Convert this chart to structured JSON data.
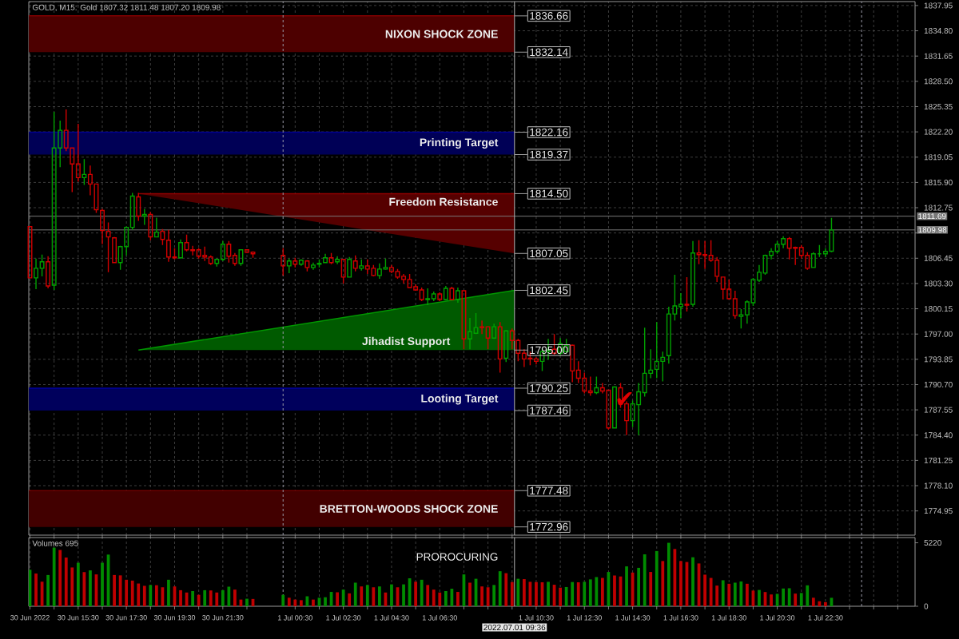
{
  "chart_data": [
    {
      "type": "candlestick",
      "title": "GOLD, M15: Gold 1807.32 1811.48 1807.20 1809.98",
      "x": [
        "2022-06-30T13:30",
        "2022-06-30T13:45",
        "2022-06-30T14:00",
        "2022-06-30T14:15",
        "2022-06-30T14:30",
        "2022-06-30T14:45",
        "2022-06-30T15:00",
        "2022-06-30T15:15",
        "2022-06-30T15:30",
        "2022-06-30T15:45",
        "2022-06-30T16:00",
        "2022-06-30T16:15",
        "2022-06-30T16:30",
        "2022-06-30T16:45",
        "2022-06-30T17:00",
        "2022-06-30T17:15",
        "2022-06-30T17:30",
        "2022-06-30T17:45",
        "2022-06-30T18:00",
        "2022-06-30T18:15",
        "2022-06-30T18:30",
        "2022-06-30T18:45",
        "2022-06-30T19:00",
        "2022-06-30T19:15",
        "2022-06-30T19:30",
        "2022-06-30T19:45",
        "2022-06-30T20:00",
        "2022-06-30T20:15",
        "2022-06-30T20:30",
        "2022-06-30T20:45",
        "2022-06-30T21:00",
        "2022-06-30T21:15",
        "2022-06-30T21:30",
        "2022-06-30T21:45",
        "2022-06-30T22:00",
        "2022-06-30T22:15",
        "2022-06-30T22:30",
        "2022-06-30T22:45",
        "2022-07-01T00:00",
        "2022-07-01T00:15",
        "2022-07-01T00:30",
        "2022-07-01T00:45",
        "2022-07-01T01:00",
        "2022-07-01T01:15",
        "2022-07-01T01:30",
        "2022-07-01T01:45",
        "2022-07-01T02:00",
        "2022-07-01T02:15",
        "2022-07-01T02:30",
        "2022-07-01T02:45",
        "2022-07-01T03:00",
        "2022-07-01T03:15",
        "2022-07-01T03:30",
        "2022-07-01T03:45",
        "2022-07-01T04:00",
        "2022-07-01T04:15",
        "2022-07-01T04:30",
        "2022-07-01T04:45",
        "2022-07-01T05:00",
        "2022-07-01T05:15",
        "2022-07-01T05:30",
        "2022-07-01T05:45",
        "2022-07-01T06:00",
        "2022-07-01T06:15",
        "2022-07-01T06:30",
        "2022-07-01T06:45",
        "2022-07-01T07:00",
        "2022-07-01T07:15",
        "2022-07-01T07:30",
        "2022-07-01T07:45",
        "2022-07-01T08:00",
        "2022-07-01T08:15",
        "2022-07-01T08:30",
        "2022-07-01T08:45",
        "2022-07-01T09:00",
        "2022-07-01T09:15",
        "2022-07-01T09:30",
        "2022-07-01T09:45",
        "2022-07-01T10:00",
        "2022-07-01T10:15",
        "2022-07-01T10:30",
        "2022-07-01T10:45",
        "2022-07-01T11:00",
        "2022-07-01T11:15",
        "2022-07-01T11:30",
        "2022-07-01T11:45",
        "2022-07-01T12:00",
        "2022-07-01T12:15",
        "2022-07-01T12:30",
        "2022-07-01T12:45",
        "2022-07-01T13:00",
        "2022-07-01T13:15",
        "2022-07-01T13:30",
        "2022-07-01T13:45",
        "2022-07-01T14:00",
        "2022-07-01T14:15",
        "2022-07-01T14:30",
        "2022-07-01T14:45",
        "2022-07-01T15:00",
        "2022-07-01T15:15",
        "2022-07-01T15:30",
        "2022-07-01T15:45",
        "2022-07-01T16:00",
        "2022-07-01T16:15",
        "2022-07-01T16:30",
        "2022-07-01T16:45",
        "2022-07-01T17:00",
        "2022-07-01T17:15",
        "2022-07-01T17:30",
        "2022-07-01T17:45",
        "2022-07-01T18:00",
        "2022-07-01T18:15",
        "2022-07-01T18:30",
        "2022-07-01T18:45",
        "2022-07-01T19:00",
        "2022-07-01T19:15",
        "2022-07-01T19:30",
        "2022-07-01T19:45",
        "2022-07-01T20:00",
        "2022-07-01T20:15",
        "2022-07-01T20:30",
        "2022-07-01T20:45",
        "2022-07-01T21:00",
        "2022-07-01T21:15",
        "2022-07-01T21:30",
        "2022-07-01T21:45",
        "2022-07-01T22:00",
        "2022-07-01T22:15",
        "2022-07-01T22:30",
        "2022-07-01T22:45"
      ],
      "ohlc": [
        [
          1810.4,
          1810.4,
          1804.0,
          1804.0
        ],
        [
          1804.0,
          1806.4,
          1802.6,
          1805.2
        ],
        [
          1805.2,
          1806.9,
          1804.2,
          1806.0
        ],
        [
          1806.0,
          1806.7,
          1802.7,
          1803.0
        ],
        [
          1803.1,
          1824.7,
          1802.5,
          1820.2
        ],
        [
          1820.2,
          1823.6,
          1817.8,
          1822.4
        ],
        [
          1822.4,
          1825.0,
          1819.8,
          1820.2
        ],
        [
          1820.2,
          1820.2,
          1814.7,
          1818.2
        ],
        [
          1818.2,
          1823.2,
          1816.0,
          1816.5
        ],
        [
          1816.5,
          1818.8,
          1815.6,
          1816.9
        ],
        [
          1816.9,
          1818.0,
          1814.3,
          1815.7
        ],
        [
          1815.7,
          1815.7,
          1812.1,
          1812.5
        ],
        [
          1812.4,
          1812.6,
          1808.2,
          1809.9
        ],
        [
          1809.8,
          1810.9,
          1804.7,
          1809.1
        ],
        [
          1809.0,
          1809.1,
          1805.9,
          1805.9
        ],
        [
          1805.9,
          1808.0,
          1805.0,
          1807.9
        ],
        [
          1807.9,
          1810.4,
          1806.8,
          1810.3
        ],
        [
          1810.3,
          1814.6,
          1810.0,
          1814.2
        ],
        [
          1814.1,
          1814.6,
          1811.1,
          1811.7
        ],
        [
          1811.7,
          1812.6,
          1810.6,
          1811.9
        ],
        [
          1811.9,
          1812.2,
          1808.7,
          1809.1
        ],
        [
          1809.1,
          1811.5,
          1809.1,
          1809.7
        ],
        [
          1809.8,
          1810.1,
          1808.1,
          1808.8
        ],
        [
          1808.7,
          1810.0,
          1806.0,
          1806.6
        ],
        [
          1806.6,
          1807.7,
          1806.3,
          1806.5
        ],
        [
          1806.5,
          1808.8,
          1806.4,
          1808.4
        ],
        [
          1808.4,
          1809.4,
          1807.3,
          1807.5
        ],
        [
          1807.5,
          1808.0,
          1806.8,
          1807.4
        ],
        [
          1807.5,
          1807.7,
          1806.4,
          1806.7
        ],
        [
          1806.8,
          1807.9,
          1806.1,
          1806.6
        ],
        [
          1806.6,
          1806.8,
          1805.6,
          1805.8
        ],
        [
          1805.8,
          1806.4,
          1805.4,
          1806.3
        ],
        [
          1806.3,
          1808.6,
          1806.1,
          1808.2
        ],
        [
          1808.2,
          1808.6,
          1805.9,
          1806.7
        ],
        [
          1806.8,
          1807.1,
          1805.5,
          1805.8
        ],
        [
          1805.8,
          1807.5,
          1805.5,
          1807.5
        ],
        [
          1807.5,
          1807.5,
          1807.1,
          1807.2
        ],
        [
          1807.2,
          1807.3,
          1806.5,
          1807.0
        ],
        [
          1806.8,
          1807.7,
          1804.3,
          1805.5
        ],
        [
          1805.5,
          1806.4,
          1804.6,
          1806.1
        ],
        [
          1806.1,
          1806.5,
          1805.3,
          1805.7
        ],
        [
          1805.7,
          1806.3,
          1805.5,
          1806.2
        ],
        [
          1806.1,
          1806.2,
          1804.8,
          1805.3
        ],
        [
          1805.3,
          1805.9,
          1805.0,
          1805.6
        ],
        [
          1805.7,
          1806.3,
          1805.3,
          1805.8
        ],
        [
          1805.9,
          1807.0,
          1805.9,
          1806.5
        ],
        [
          1806.5,
          1807.1,
          1805.7,
          1805.9
        ],
        [
          1806.0,
          1806.7,
          1805.7,
          1806.3
        ],
        [
          1806.3,
          1806.3,
          1803.3,
          1804.1
        ],
        [
          1804.1,
          1806.6,
          1804.1,
          1806.3
        ],
        [
          1806.1,
          1806.8,
          1804.8,
          1805.2
        ],
        [
          1805.2,
          1806.3,
          1804.9,
          1805.5
        ],
        [
          1805.5,
          1806.3,
          1804.5,
          1805.1
        ],
        [
          1805.2,
          1805.6,
          1804.2,
          1804.3
        ],
        [
          1804.3,
          1805.8,
          1803.9,
          1805.1
        ],
        [
          1805.1,
          1806.4,
          1805.0,
          1805.3
        ],
        [
          1805.3,
          1805.6,
          1804.6,
          1804.8
        ],
        [
          1804.8,
          1805.1,
          1803.9,
          1804.1
        ],
        [
          1804.2,
          1804.5,
          1803.3,
          1803.8
        ],
        [
          1803.8,
          1804.5,
          1802.8,
          1802.8
        ],
        [
          1802.9,
          1803.2,
          1802.4,
          1802.5
        ],
        [
          1802.5,
          1802.8,
          1801.1,
          1801.3
        ],
        [
          1801.3,
          1802.7,
          1800.6,
          1801.4
        ],
        [
          1801.4,
          1802.3,
          1801.1,
          1802.0
        ],
        [
          1802.0,
          1802.2,
          1801.1,
          1801.3
        ],
        [
          1801.3,
          1803.0,
          1801.2,
          1802.7
        ],
        [
          1802.7,
          1802.9,
          1801.2,
          1801.3
        ],
        [
          1801.3,
          1802.8,
          1800.9,
          1802.4
        ],
        [
          1802.4,
          1802.4,
          1795.1,
          1796.4
        ],
        [
          1796.4,
          1799.0,
          1795.1,
          1797.3
        ],
        [
          1797.1,
          1799.6,
          1797.0,
          1797.8
        ],
        [
          1797.9,
          1798.7,
          1797.0,
          1797.8
        ],
        [
          1797.9,
          1798.0,
          1795.1,
          1796.5
        ],
        [
          1796.5,
          1798.3,
          1796.4,
          1797.9
        ],
        [
          1797.9,
          1798.5,
          1792.2,
          1793.9
        ],
        [
          1794.0,
          1797.5,
          1793.5,
          1797.4
        ],
        [
          1797.4,
          1797.7,
          1795.1,
          1796.2
        ],
        [
          1796.2,
          1796.4,
          1793.6,
          1794.6
        ],
        [
          1794.6,
          1795.1,
          1792.9,
          1793.9
        ],
        [
          1794.0,
          1794.8,
          1793.1,
          1793.9
        ],
        [
          1793.9,
          1794.1,
          1793.2,
          1793.6
        ],
        [
          1793.6,
          1795.2,
          1792.4,
          1794.8
        ],
        [
          1794.8,
          1796.4,
          1793.8,
          1795.0
        ],
        [
          1795.1,
          1797.0,
          1794.4,
          1794.6
        ],
        [
          1794.6,
          1796.5,
          1794.3,
          1795.8
        ],
        [
          1794.8,
          1796.4,
          1794.6,
          1795.6
        ],
        [
          1795.6,
          1795.7,
          1791.0,
          1792.4
        ],
        [
          1792.5,
          1793.6,
          1790.9,
          1791.5
        ],
        [
          1791.5,
          1792.2,
          1789.6,
          1789.9
        ],
        [
          1789.9,
          1791.7,
          1789.3,
          1789.7
        ],
        [
          1789.7,
          1791.7,
          1789.5,
          1790.3
        ],
        [
          1790.3,
          1790.9,
          1789.6,
          1789.9
        ],
        [
          1790.0,
          1790.0,
          1785.1,
          1785.3
        ],
        [
          1785.3,
          1790.5,
          1785.3,
          1790.4
        ],
        [
          1790.3,
          1790.9,
          1787.8,
          1788.3
        ],
        [
          1788.3,
          1788.6,
          1784.4,
          1786.2
        ],
        [
          1786.2,
          1788.7,
          1785.4,
          1788.3
        ],
        [
          1788.2,
          1790.9,
          1784.4,
          1789.8
        ],
        [
          1789.7,
          1797.8,
          1789.2,
          1792.1
        ],
        [
          1792.1,
          1795.1,
          1791.5,
          1792.5
        ],
        [
          1792.6,
          1798.5,
          1791.5,
          1793.6
        ],
        [
          1793.6,
          1794.8,
          1791.1,
          1794.1
        ],
        [
          1794.3,
          1800.4,
          1793.3,
          1799.5
        ],
        [
          1799.5,
          1804.4,
          1798.7,
          1800.5
        ],
        [
          1800.4,
          1802.1,
          1799.0,
          1800.7
        ],
        [
          1800.7,
          1804.1,
          1799.8,
          1800.6
        ],
        [
          1800.7,
          1808.6,
          1800.4,
          1807.1
        ],
        [
          1807.1,
          1808.7,
          1805.7,
          1806.9
        ],
        [
          1806.9,
          1808.6,
          1805.1,
          1806.8
        ],
        [
          1806.8,
          1808.7,
          1806.0,
          1806.2
        ],
        [
          1806.2,
          1806.6,
          1803.5,
          1804.2
        ],
        [
          1804.1,
          1804.1,
          1801.3,
          1802.6
        ],
        [
          1802.6,
          1803.8,
          1801.3,
          1801.4
        ],
        [
          1801.4,
          1802.4,
          1798.9,
          1799.3
        ],
        [
          1799.2,
          1800.1,
          1797.7,
          1799.4
        ],
        [
          1799.4,
          1801.2,
          1798.3,
          1801.0
        ],
        [
          1800.9,
          1804.0,
          1800.5,
          1803.8
        ],
        [
          1803.7,
          1805.6,
          1803.5,
          1804.7
        ],
        [
          1804.6,
          1806.9,
          1804.4,
          1806.8
        ],
        [
          1806.8,
          1807.7,
          1806.3,
          1807.3
        ],
        [
          1807.3,
          1808.6,
          1807.0,
          1808.2
        ],
        [
          1808.2,
          1809.2,
          1807.7,
          1808.9
        ],
        [
          1808.9,
          1809.1,
          1806.3,
          1807.7
        ],
        [
          1807.8,
          1807.9,
          1805.6,
          1807.7
        ],
        [
          1807.8,
          1808.1,
          1806.4,
          1806.8
        ],
        [
          1806.8,
          1807.2,
          1805.0,
          1805.2
        ],
        [
          1805.3,
          1807.2,
          1805.3,
          1807.0
        ],
        [
          1807.0,
          1808.1,
          1806.6,
          1807.0
        ],
        [
          1807.0,
          1807.7,
          1806.6,
          1807.3
        ],
        [
          1807.32,
          1811.48,
          1807.2,
          1809.98
        ]
      ],
      "colors": [
        "#d00000",
        "#00a000",
        "#00a000",
        "#d00000",
        "#00a000",
        "#00a000",
        "#d00000",
        "#d00000",
        "#d00000",
        "#00a000",
        "#d00000",
        "#d00000",
        "#d00000",
        "#d00000",
        "#d00000",
        "#00a000",
        "#00a000",
        "#00a000",
        "#d00000",
        "#00a000",
        "#d00000",
        "#00a000",
        "#d00000",
        "#d00000",
        "#d00000",
        "#00a000",
        "#d00000",
        "#d00000",
        "#d00000",
        "#d00000",
        "#d00000",
        "#00a000",
        "#00a000",
        "#d00000",
        "#d00000",
        "#00a000",
        "#d00000",
        "#d00000",
        "#d00000",
        "#00a000",
        "#d00000",
        "#00a000",
        "#d00000",
        "#00a000",
        "#00a000",
        "#00a000",
        "#d00000",
        "#00a000",
        "#d00000",
        "#00a000",
        "#d00000",
        "#00a000",
        "#d00000",
        "#d00000",
        "#00a000",
        "#00a000",
        "#d00000",
        "#d00000",
        "#d00000",
        "#d00000",
        "#d00000",
        "#d00000",
        "#00a000",
        "#00a000",
        "#d00000",
        "#00a000",
        "#d00000",
        "#00a000",
        "#d00000",
        "#00a000",
        "#00a000",
        "#d00000",
        "#d00000",
        "#00a000",
        "#d00000",
        "#00a000",
        "#d00000",
        "#d00000",
        "#d00000",
        "#d00000",
        "#d00000",
        "#00a000",
        "#00a000",
        "#d00000",
        "#00a000",
        "#00a000",
        "#d00000",
        "#d00000",
        "#d00000",
        "#d00000",
        "#00a000",
        "#d00000",
        "#d00000",
        "#00a000",
        "#d00000",
        "#d00000",
        "#00a000",
        "#00a000",
        "#00a000",
        "#00a000",
        "#00a000",
        "#00a000",
        "#00a000",
        "#00a000",
        "#00a000",
        "#d00000",
        "#00a000",
        "#d00000",
        "#d00000",
        "#d00000",
        "#d00000",
        "#d00000",
        "#d00000",
        "#d00000",
        "#00a000",
        "#00a000",
        "#00a000",
        "#00a000",
        "#00a000",
        "#00a000",
        "#00a000",
        "#00a000",
        "#d00000",
        "#d00000",
        "#d00000",
        "#d00000",
        "#00a000",
        "#00a000",
        "#00a000",
        "#00a000"
      ],
      "series": [
        {
          "type": "line",
          "name": "NIXON SHOCK ZONE",
          "color": "#800000",
          "x": [
            "2022-06-30T13:27",
            "2022-07-01T09:36"
          ],
          "values": [
            1836.66,
            1836.66
          ],
          "lower": [
            1832.14,
            1832.14
          ],
          "upper": [
            1836.66,
            1836.66
          ]
        },
        {
          "type": "line",
          "name": "Printing Target",
          "color": "#000090",
          "x": [
            "2022-06-30T13:27",
            "2022-07-01T09:36"
          ],
          "values": [
            1822.16,
            1822.16
          ],
          "lower": [
            1819.37,
            1819.37
          ],
          "upper": [
            1822.16,
            1822.16
          ]
        },
        {
          "type": "line",
          "name": "Freedom Resistance",
          "color": "#900000",
          "x": [
            "2022-06-30T18:00",
            "2022-07-01T09:36"
          ],
          "values": [
            1814.5,
            1814.5
          ],
          "lower": [
            1814.5,
            1807.05
          ],
          "upper": [
            1814.5,
            1814.5
          ]
        },
        {
          "type": "line",
          "name": "Jihadist Support",
          "color": "#009600",
          "x": [
            "2022-06-30T18:00",
            "2022-07-01T09:36"
          ],
          "values": [
            1795.0,
            1802.45
          ],
          "lower": [
            1795.0,
            1795.0
          ],
          "upper": [
            1795.0,
            1802.45
          ]
        },
        {
          "type": "line",
          "name": "Looting Target",
          "color": "#00009a",
          "x": [
            "2022-06-30T13:27",
            "2022-07-01T09:36"
          ],
          "values": [
            1790.25,
            1790.25
          ],
          "lower": [
            1787.46,
            1787.46
          ],
          "upper": [
            1790.25,
            1790.25
          ]
        },
        {
          "type": "line",
          "name": "BRETTON-WOODS SHOCK ZONE",
          "color": "#6e0000",
          "x": [
            "2022-06-30T13:27",
            "2022-07-01T09:36"
          ],
          "values": [
            1777.48,
            1777.48
          ],
          "lower": [
            1772.96,
            1772.96
          ],
          "upper": [
            1777.48,
            1777.48
          ]
        }
      ],
      "xlim": [
        "2022-06-30T13:27",
        "2022-07-02T02:13"
      ],
      "xticks": [
        {
          "value": "2022-06-30T13:30",
          "label": null
        },
        {
          "value": "2022-06-30T14:30",
          "label": null
        },
        {
          "value": "2022-06-30T15:30",
          "label": null
        },
        {
          "value": "2022-06-30T16:30",
          "label": null
        },
        {
          "value": "2022-06-30T17:30",
          "label": null
        },
        {
          "value": "2022-06-30T18:30",
          "label": null
        },
        {
          "value": "2022-06-30T19:30",
          "label": null
        },
        {
          "value": "2022-06-30T20:30",
          "label": null
        },
        {
          "value": "2022-06-30T21:30",
          "label": null
        },
        {
          "value": "2022-06-30T22:30",
          "label": null
        },
        {
          "value": "2022-07-01T00:30",
          "label": null
        },
        {
          "value": "2022-07-01T01:30",
          "label": null
        },
        {
          "value": "2022-07-01T02:30",
          "label": null
        },
        {
          "value": "2022-07-01T03:30",
          "label": null
        },
        {
          "value": "2022-07-01T04:30",
          "label": null
        },
        {
          "value": "2022-07-01T05:30",
          "label": null
        },
        {
          "value": "2022-07-01T06:30",
          "label": null
        },
        {
          "value": "2022-07-01T07:30",
          "label": null
        },
        {
          "value": "2022-07-01T08:30",
          "label": null
        },
        {
          "value": "2022-07-01T09:30",
          "label": null
        },
        {
          "value": "2022-07-01T10:30",
          "label": null
        },
        {
          "value": "2022-07-01T11:30",
          "label": null
        },
        {
          "value": "2022-07-01T12:30",
          "label": null
        },
        {
          "value": "2022-07-01T13:30",
          "label": null
        },
        {
          "value": "2022-07-01T14:30",
          "label": null
        },
        {
          "value": "2022-07-01T15:30",
          "label": null
        },
        {
          "value": "2022-07-01T16:30",
          "label": null
        },
        {
          "value": "2022-07-01T17:30",
          "label": null
        },
        {
          "value": "2022-07-01T18:30",
          "label": null
        },
        {
          "value": "2022-07-01T19:30",
          "label": null
        },
        {
          "value": "2022-07-01T20:30",
          "label": null
        },
        {
          "value": "2022-07-01T21:30",
          "label": null
        },
        {
          "value": "2022-07-01T22:30",
          "label": null
        },
        {
          "value": "2022-07-01T23:30",
          "label": null
        },
        {
          "value": "2022-07-02T00:30",
          "label": null
        },
        {
          "value": "2022-07-02T01:30",
          "label": null
        }
      ],
      "ylim": [
        1771.93,
        1838.44
      ],
      "yticks": [
        {
          "value": 1774.95,
          "label": "1774.95"
        },
        {
          "value": 1778.1,
          "label": "1778.10"
        },
        {
          "value": 1781.25,
          "label": "1781.25"
        },
        {
          "value": 1784.4,
          "label": "1784.40"
        },
        {
          "value": 1787.55,
          "label": "1787.55"
        },
        {
          "value": 1790.7,
          "label": "1790.70"
        },
        {
          "value": 1793.85,
          "label": "1793.85"
        },
        {
          "value": 1797,
          "label": "1797.00"
        },
        {
          "value": 1800.15,
          "label": "1800.15"
        },
        {
          "value": 1803.3,
          "label": "1803.30"
        },
        {
          "value": 1806.45,
          "label": "1806.45"
        },
        {
          "value": 1809.6,
          "label": null
        },
        {
          "value": 1812.75,
          "label": "1812.75"
        },
        {
          "value": 1815.9,
          "label": "1815.90"
        },
        {
          "value": 1819.05,
          "label": "1819.05"
        },
        {
          "value": 1822.2,
          "label": "1822.20"
        },
        {
          "value": 1825.35,
          "label": "1825.35"
        },
        {
          "value": 1828.5,
          "label": "1828.50"
        },
        {
          "value": 1831.65,
          "label": "1831.65"
        },
        {
          "value": 1834.8,
          "label": "1834.80"
        },
        {
          "value": 1837.95,
          "label": "1837.95"
        }
      ],
      "tick_labels": "y",
      "grid": true,
      "ref_lines": [
        {
          "axis": "y",
          "value": 1811.69,
          "label": "1811.69",
          "color": "#787878"
        },
        {
          "axis": "y",
          "value": 1809.98,
          "label": "1809.98",
          "color": "#787878"
        },
        {
          "axis": "x",
          "value": "2022-07-01T09:36",
          "color": "#b4b4b4"
        },
        {
          "axis": "x",
          "value": "2022-07-01T00:00",
          "color": "#9a9aa8",
          "line_style": "dashed"
        },
        {
          "axis": "x",
          "value": "2022-07-02T00:00",
          "color": "#9a9aa8",
          "line_style": "dashed"
        }
      ],
      "annotations": [
        "1836.66",
        "1832.14",
        "1822.16",
        "1819.37",
        "1814.50",
        "1807.05",
        "1802.45",
        "1795.00",
        "1790.25",
        "1787.46",
        "1777.48",
        "1772.96",
        {
          "text": "✔",
          "x": "2022-07-01T14:10",
          "y": 1788.8
        }
      ]
    },
    {
      "type": "bar",
      "title": "Volumes 695",
      "x": [
        "2022-06-30T13:30",
        "2022-06-30T13:45",
        "2022-06-30T14:00",
        "2022-06-30T14:15",
        "2022-06-30T14:30",
        "2022-06-30T14:45",
        "2022-06-30T15:00",
        "2022-06-30T15:15",
        "2022-06-30T15:30",
        "2022-06-30T15:45",
        "2022-06-30T16:00",
        "2022-06-30T16:15",
        "2022-06-30T16:30",
        "2022-06-30T16:45",
        "2022-06-30T17:00",
        "2022-06-30T17:15",
        "2022-06-30T17:30",
        "2022-06-30T17:45",
        "2022-06-30T18:00",
        "2022-06-30T18:15",
        "2022-06-30T18:30",
        "2022-06-30T18:45",
        "2022-06-30T19:00",
        "2022-06-30T19:15",
        "2022-06-30T19:30",
        "2022-06-30T19:45",
        "2022-06-30T20:00",
        "2022-06-30T20:15",
        "2022-06-30T20:30",
        "2022-06-30T20:45",
        "2022-06-30T21:00",
        "2022-06-30T21:15",
        "2022-06-30T21:30",
        "2022-06-30T21:45",
        "2022-06-30T22:00",
        "2022-06-30T22:15",
        "2022-06-30T22:30",
        "2022-06-30T22:45",
        "2022-07-01T00:00",
        "2022-07-01T00:15",
        "2022-07-01T00:30",
        "2022-07-01T00:45",
        "2022-07-01T01:00",
        "2022-07-01T01:15",
        "2022-07-01T01:30",
        "2022-07-01T01:45",
        "2022-07-01T02:00",
        "2022-07-01T02:15",
        "2022-07-01T02:30",
        "2022-07-01T02:45",
        "2022-07-01T03:00",
        "2022-07-01T03:15",
        "2022-07-01T03:30",
        "2022-07-01T03:45",
        "2022-07-01T04:00",
        "2022-07-01T04:15",
        "2022-07-01T04:30",
        "2022-07-01T04:45",
        "2022-07-01T05:00",
        "2022-07-01T05:15",
        "2022-07-01T05:30",
        "2022-07-01T05:45",
        "2022-07-01T06:00",
        "2022-07-01T06:15",
        "2022-07-01T06:30",
        "2022-07-01T06:45",
        "2022-07-01T07:00",
        "2022-07-01T07:15",
        "2022-07-01T07:30",
        "2022-07-01T07:45",
        "2022-07-01T08:00",
        "2022-07-01T08:15",
        "2022-07-01T08:30",
        "2022-07-01T08:45",
        "2022-07-01T09:00",
        "2022-07-01T09:15",
        "2022-07-01T09:30",
        "2022-07-01T09:45",
        "2022-07-01T10:00",
        "2022-07-01T10:15",
        "2022-07-01T10:30",
        "2022-07-01T10:45",
        "2022-07-01T11:00",
        "2022-07-01T11:15",
        "2022-07-01T11:30",
        "2022-07-01T11:45",
        "2022-07-01T12:00",
        "2022-07-01T12:15",
        "2022-07-01T12:30",
        "2022-07-01T12:45",
        "2022-07-01T13:00",
        "2022-07-01T13:15",
        "2022-07-01T13:30",
        "2022-07-01T13:45",
        "2022-07-01T14:00",
        "2022-07-01T14:15",
        "2022-07-01T14:30",
        "2022-07-01T14:45",
        "2022-07-01T15:00",
        "2022-07-01T15:15",
        "2022-07-01T15:30",
        "2022-07-01T15:45",
        "2022-07-01T16:00",
        "2022-07-01T16:15",
        "2022-07-01T16:30",
        "2022-07-01T16:45",
        "2022-07-01T17:00",
        "2022-07-01T17:15",
        "2022-07-01T17:30",
        "2022-07-01T17:45",
        "2022-07-01T18:00",
        "2022-07-01T18:15",
        "2022-07-01T18:30",
        "2022-07-01T18:45",
        "2022-07-01T19:00",
        "2022-07-01T19:15",
        "2022-07-01T19:30",
        "2022-07-01T19:45",
        "2022-07-01T20:00",
        "2022-07-01T20:15",
        "2022-07-01T20:30",
        "2022-07-01T20:45",
        "2022-07-01T21:00",
        "2022-07-01T21:15",
        "2022-07-01T21:30",
        "2022-07-01T21:45",
        "2022-07-01T22:00",
        "2022-07-01T22:15",
        "2022-07-01T22:30",
        "2022-07-01T22:45"
      ],
      "values": [
        3000,
        2690,
        2020,
        2570,
        4820,
        4630,
        4010,
        3190,
        3580,
        2810,
        2950,
        2620,
        3580,
        4250,
        2570,
        2540,
        2180,
        2110,
        1870,
        1680,
        1750,
        1730,
        1560,
        2180,
        1630,
        1320,
        1130,
        1250,
        940,
        1320,
        1300,
        1130,
        1320,
        1610,
        1370,
        550,
        620,
        600,
        940,
        700,
        550,
        500,
        820,
        550,
        700,
        740,
        1180,
        1150,
        1370,
        1060,
        1940,
        1630,
        1750,
        1560,
        1630,
        1130,
        1800,
        1560,
        1800,
        2300,
        2020,
        2180,
        1750,
        1370,
        1130,
        1250,
        1440,
        1180,
        2620,
        1940,
        2260,
        1630,
        1560,
        1750,
        2880,
        2720,
        1990,
        2260,
        2230,
        2010,
        1990,
        1970,
        2010,
        1770,
        1530,
        1580,
        1990,
        1970,
        2010,
        2210,
        2400,
        2330,
        2820,
        2530,
        2450,
        3280,
        2770,
        3160,
        4270,
        2820,
        4540,
        3720,
        5220,
        4710,
        3720,
        3640,
        4030,
        3520,
        2600,
        2330,
        1700,
        2140,
        1850,
        1940,
        2040,
        1850,
        1290,
        1340,
        1170,
        970,
        1020,
        1460,
        1480,
        1040,
        1090,
        1720,
        700,
        410,
        340,
        695
      ],
      "colors": [
        "#008c00",
        "#c00000",
        "#c00000",
        "#008c00",
        "#008c00",
        "#c00000",
        "#c00000",
        "#c00000",
        "#008c00",
        "#c00000",
        "#008c00",
        "#c00000",
        "#008c00",
        "#008c00",
        "#c00000",
        "#c00000",
        "#c00000",
        "#c00000",
        "#c00000",
        "#c00000",
        "#008c00",
        "#c00000",
        "#c00000",
        "#008c00",
        "#c00000",
        "#c00000",
        "#c00000",
        "#008c00",
        "#c00000",
        "#008c00",
        "#c00000",
        "#c00000",
        "#008c00",
        "#008c00",
        "#c00000",
        "#c00000",
        "#008c00",
        "#c00000",
        "#008c00",
        "#c00000",
        "#c00000",
        "#c00000",
        "#008c00",
        "#c00000",
        "#008c00",
        "#008c00",
        "#008c00",
        "#c00000",
        "#008c00",
        "#c00000",
        "#008c00",
        "#c00000",
        "#008c00",
        "#c00000",
        "#008c00",
        "#c00000",
        "#008c00",
        "#c00000",
        "#008c00",
        "#008c00",
        "#c00000",
        "#008c00",
        "#c00000",
        "#c00000",
        "#c00000",
        "#008c00",
        "#008c00",
        "#c00000",
        "#008c00",
        "#c00000",
        "#008c00",
        "#c00000",
        "#c00000",
        "#008c00",
        "#008c00",
        "#c00000",
        "#c00000",
        "#008c00",
        "#c00000",
        "#c00000",
        "#c00000",
        "#c00000",
        "#008c00",
        "#c00000",
        "#c00000",
        "#008c00",
        "#008c00",
        "#c00000",
        "#008c00",
        "#008c00",
        "#008c00",
        "#c00000",
        "#008c00",
        "#c00000",
        "#c00000",
        "#008c00",
        "#c00000",
        "#008c00",
        "#008c00",
        "#c00000",
        "#008c00",
        "#c00000",
        "#008c00",
        "#c00000",
        "#c00000",
        "#c00000",
        "#008c00",
        "#c00000",
        "#c00000",
        "#c00000",
        "#c00000",
        "#008c00",
        "#c00000",
        "#008c00",
        "#008c00",
        "#c00000",
        "#c00000",
        "#008c00",
        "#c00000",
        "#c00000",
        "#008c00",
        "#008c00",
        "#008c00",
        "#c00000",
        "#008c00",
        "#008c00",
        "#c00000",
        "#c00000",
        "#c00000",
        "#008c00"
      ],
      "xlim": [
        "2022-06-30T13:27",
        "2022-07-02T02:13"
      ],
      "xticks": [
        {
          "value": "2022-06-30T13:30",
          "label": "30 Jun 2022"
        },
        {
          "value": "2022-06-30T14:30",
          "label": null
        },
        {
          "value": "2022-06-30T15:30",
          "label": "30 Jun 15:30"
        },
        {
          "value": "2022-06-30T16:30",
          "label": null
        },
        {
          "value": "2022-06-30T17:30",
          "label": "30 Jun 17:30"
        },
        {
          "value": "2022-06-30T18:30",
          "label": null
        },
        {
          "value": "2022-06-30T19:30",
          "label": "30 Jun 19:30"
        },
        {
          "value": "2022-06-30T20:30",
          "label": null
        },
        {
          "value": "2022-06-30T21:30",
          "label": "30 Jun 21:30"
        },
        {
          "value": "2022-06-30T22:30",
          "label": null
        },
        {
          "value": "2022-07-01T00:30",
          "label": "1 Jul 00:30"
        },
        {
          "value": "2022-07-01T01:30",
          "label": null
        },
        {
          "value": "2022-07-01T02:30",
          "label": "1 Jul 02:30"
        },
        {
          "value": "2022-07-01T03:30",
          "label": null
        },
        {
          "value": "2022-07-01T04:30",
          "label": "1 Jul 04:30"
        },
        {
          "value": "2022-07-01T05:30",
          "label": null
        },
        {
          "value": "2022-07-01T06:30",
          "label": "1 Jul 06:30"
        },
        {
          "value": "2022-07-01T07:30",
          "label": null
        },
        {
          "value": "2022-07-01T08:30",
          "label": null
        },
        {
          "value": "2022-07-01T09:30",
          "label": null
        },
        {
          "value": "2022-07-01T10:30",
          "label": "1 Jul 10:30"
        },
        {
          "value": "2022-07-01T11:30",
          "label": null
        },
        {
          "value": "2022-07-01T12:30",
          "label": "1 Jul 12:30"
        },
        {
          "value": "2022-07-01T13:30",
          "label": null
        },
        {
          "value": "2022-07-01T14:30",
          "label": "1 Jul 14:30"
        },
        {
          "value": "2022-07-01T15:30",
          "label": null
        },
        {
          "value": "2022-07-01T16:30",
          "label": "1 Jul 16:30"
        },
        {
          "value": "2022-07-01T17:30",
          "label": null
        },
        {
          "value": "2022-07-01T18:30",
          "label": "1 Jul 18:30"
        },
        {
          "value": "2022-07-01T19:30",
          "label": null
        },
        {
          "value": "2022-07-01T20:30",
          "label": "1 Jul 20:30"
        },
        {
          "value": "2022-07-01T21:30",
          "label": null
        },
        {
          "value": "2022-07-01T22:30",
          "label": "1 Jul 22:30"
        },
        {
          "value": "2022-07-01T23:30",
          "label": null
        },
        {
          "value": "2022-07-02T00:30",
          "label": null
        },
        {
          "value": "2022-07-02T01:30",
          "label": null
        }
      ],
      "ylim": [
        0,
        5650
      ],
      "yticks": [
        0,
        5220
      ],
      "grid": "x",
      "ref_lines": [
        {
          "axis": "x",
          "value": "2022-07-01T09:36",
          "label": "2022.07.01 09:36",
          "color": "#b4b4b4"
        },
        {
          "axis": "x",
          "value": "2022-07-01T00:00",
          "color": "#9a9aa8",
          "line_style": "dashed"
        },
        {
          "axis": "x",
          "value": "2022-07-02T00:00",
          "color": "#9a9aa8",
          "line_style": "dashed"
        }
      ],
      "annotations": [
        "PROROCURING"
      ]
    }
  ]
}
